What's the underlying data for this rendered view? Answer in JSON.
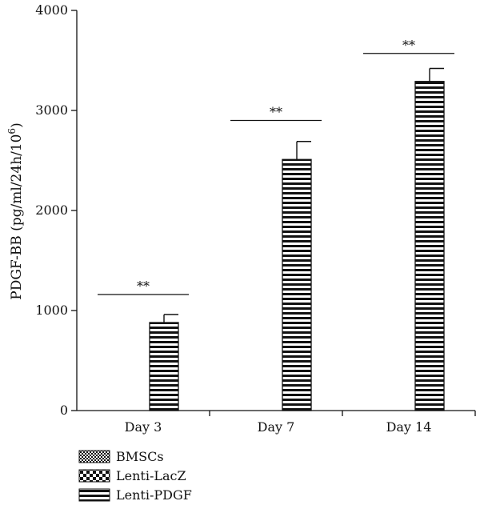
{
  "chart_data": {
    "type": "bar",
    "title": "",
    "ylabel": "PDGF-BB (pg/ml/24h/10",
    "ylabel_superscript": "6",
    "ylabel_suffix": ")",
    "xlabel": "",
    "ylim": [
      0,
      4000
    ],
    "yticks": [
      "0",
      "1000",
      "2000",
      "3000",
      "4000"
    ],
    "categories": [
      "Day 3",
      "Day 7",
      "Day 14"
    ],
    "series": [
      {
        "name": "BMSCs",
        "pattern": "checker-fine",
        "values": [
          0,
          0,
          0
        ],
        "errors": [
          0,
          0,
          0
        ]
      },
      {
        "name": "Lenti-LacZ",
        "pattern": "checker-coarse",
        "values": [
          0,
          0,
          0
        ],
        "errors": [
          0,
          0,
          0
        ]
      },
      {
        "name": "Lenti-PDGF",
        "pattern": "horizontal-stripes",
        "values": [
          880,
          2510,
          3290
        ],
        "errors": [
          80,
          180,
          130
        ]
      }
    ],
    "significance": [
      {
        "category": "Day 3",
        "label": "**",
        "y": 1160
      },
      {
        "category": "Day 7",
        "label": "**",
        "y": 2900
      },
      {
        "category": "Day 14",
        "label": "**",
        "y": 3570
      }
    ],
    "legend": {
      "placement": "bottom-left"
    },
    "grid": false,
    "colors": {
      "ink": "#111111",
      "background": "#ffffff"
    }
  }
}
